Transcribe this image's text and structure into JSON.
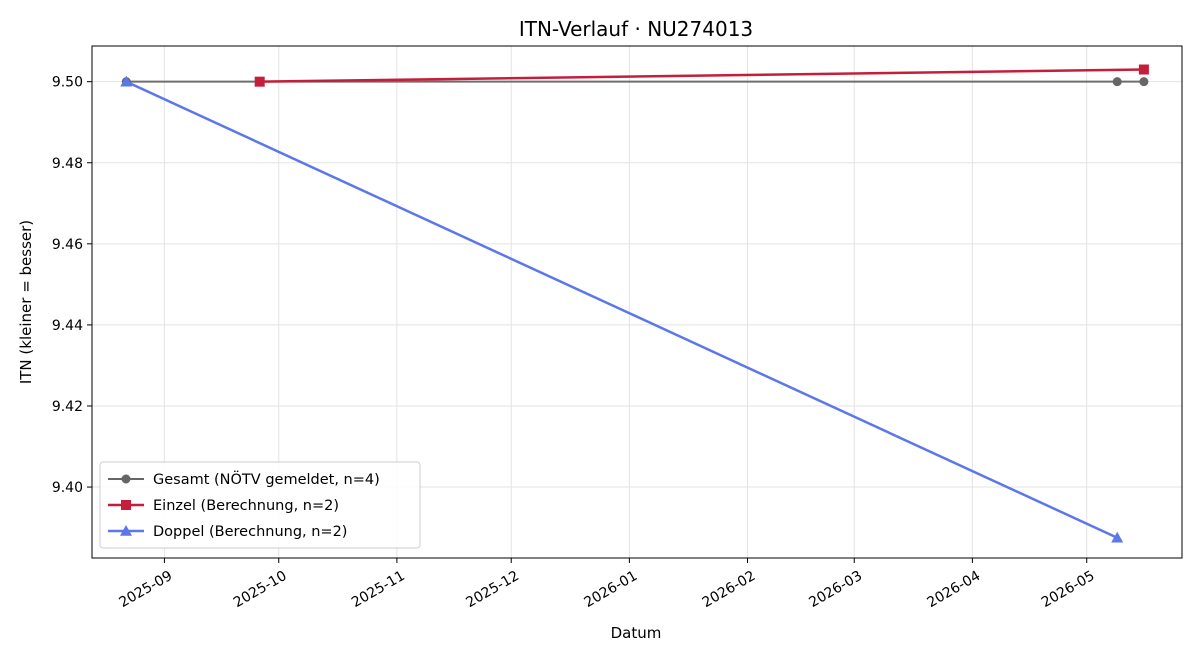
{
  "chart_data": {
    "type": "line",
    "title": "ITN-Verlauf · NU274013",
    "xlabel": "Datum",
    "ylabel": "ITN  (kleiner = besser)",
    "x_type": "date",
    "xlim": [
      "2025-08-13",
      "2026-05-26"
    ],
    "ylim": [
      9.3825,
      9.5088
    ],
    "x_ticks": [
      "2025-09-01",
      "2025-10-01",
      "2025-11-01",
      "2025-12-01",
      "2026-01-01",
      "2026-02-01",
      "2026-03-01",
      "2026-04-01",
      "2026-05-01"
    ],
    "x_tick_labels": [
      "2025-09",
      "2025-10",
      "2025-11",
      "2025-12",
      "2026-01",
      "2026-02",
      "2026-03",
      "2026-04",
      "2026-05"
    ],
    "y_ticks": [
      9.4,
      9.42,
      9.44,
      9.46,
      9.48,
      9.5
    ],
    "y_tick_labels": [
      "9.40",
      "9.42",
      "9.44",
      "9.46",
      "9.48",
      "9.50"
    ],
    "grid": true,
    "legend_position": "lower-left",
    "series": [
      {
        "name": "Gesamt (NÖTV gemeldet, n=4)",
        "color": "#666666",
        "marker": "circle",
        "points": [
          {
            "x": "2025-08-22",
            "y": 9.5
          },
          {
            "x": "2025-09-26",
            "y": 9.5
          },
          {
            "x": "2026-05-09",
            "y": 9.5
          },
          {
            "x": "2026-05-16",
            "y": 9.5
          }
        ]
      },
      {
        "name": "Einzel (Berechnung, n=2)",
        "color": "#c41e3a",
        "marker": "square",
        "points": [
          {
            "x": "2025-09-26",
            "y": 9.5
          },
          {
            "x": "2026-05-16",
            "y": 9.503
          }
        ]
      },
      {
        "name": "Doppel (Berechnung, n=2)",
        "color": "#5b77ea",
        "marker": "triangle",
        "points": [
          {
            "x": "2025-08-22",
            "y": 9.5
          },
          {
            "x": "2026-05-09",
            "y": 9.3875
          }
        ]
      }
    ]
  }
}
